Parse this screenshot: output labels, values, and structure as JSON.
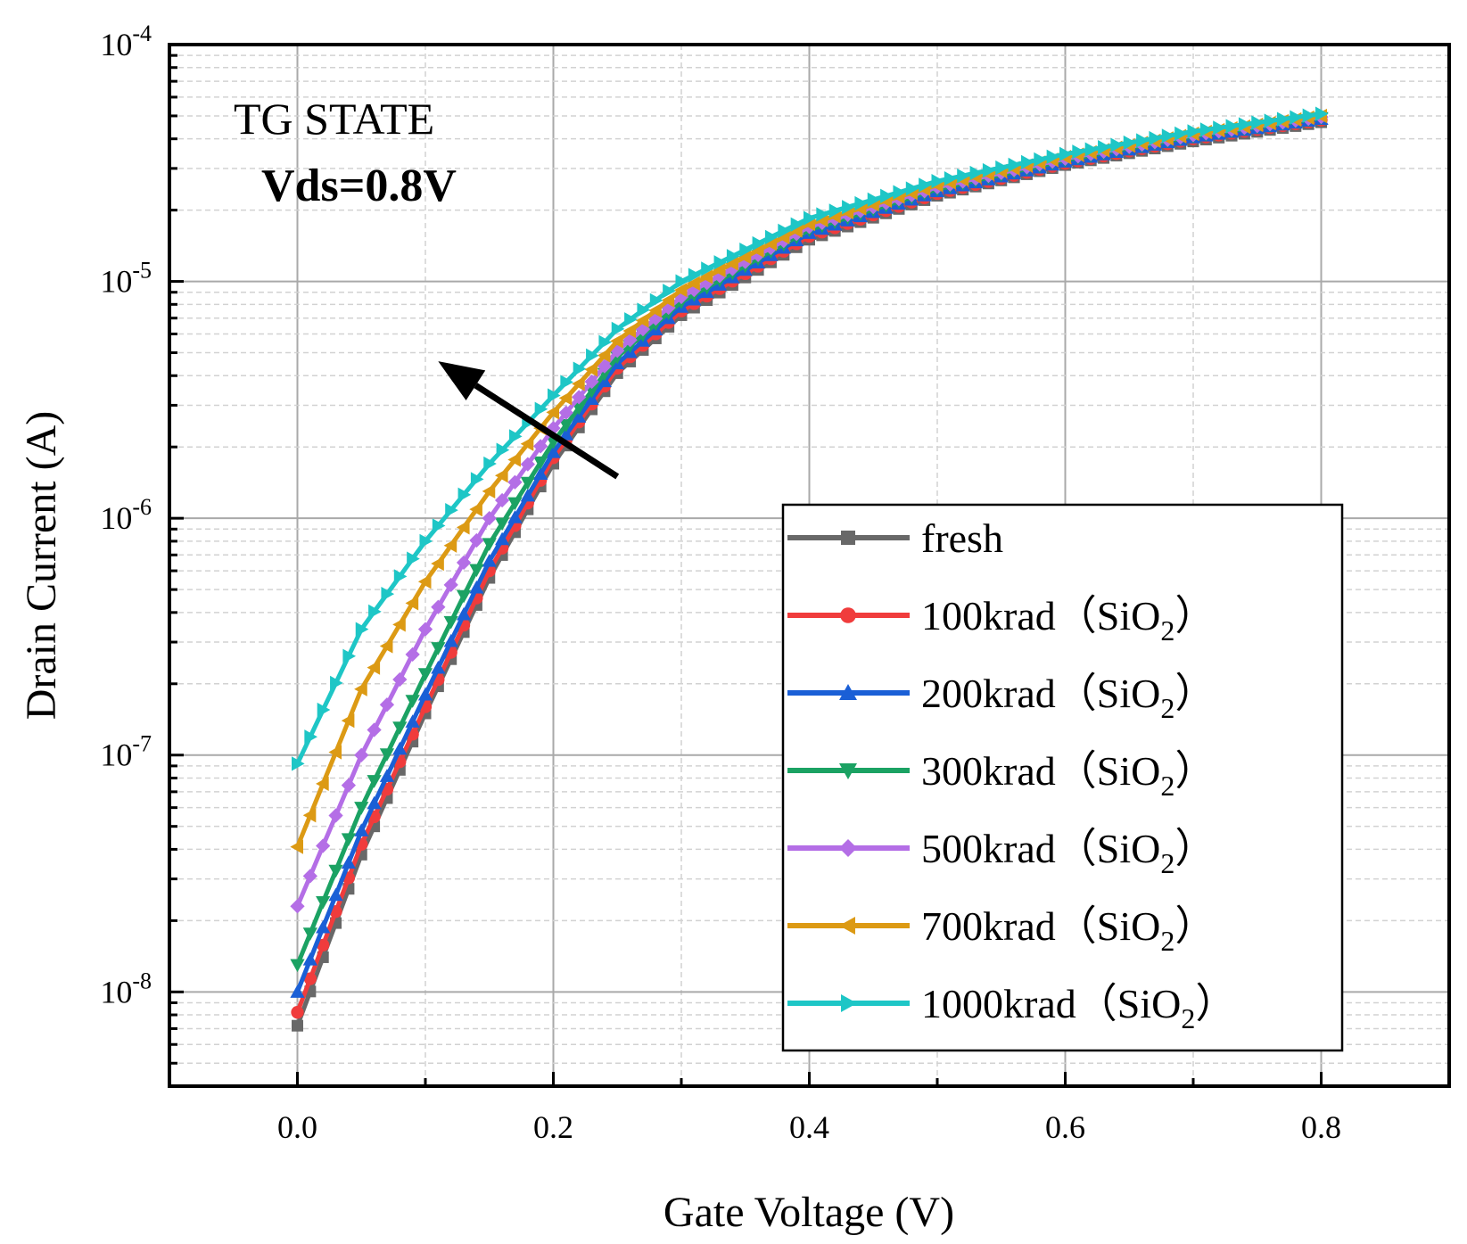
{
  "chart_data": {
    "type": "line",
    "xlabel": "Gate Voltage (V)",
    "ylabel": "Drain Current (A)",
    "xlim": [
      -0.1,
      0.9
    ],
    "ylim": [
      4e-09,
      0.0001
    ],
    "yscale": "log",
    "grid": true,
    "x_ticks": [
      {
        "value": 0.0,
        "label": "0.0"
      },
      {
        "value": 0.2,
        "label": "0.2"
      },
      {
        "value": 0.4,
        "label": "0.4"
      },
      {
        "value": 0.6,
        "label": "0.6"
      },
      {
        "value": 0.8,
        "label": "0.8"
      }
    ],
    "y_ticks": [
      {
        "value": 1e-08,
        "base": "10",
        "exp": "-8"
      },
      {
        "value": 1e-07,
        "base": "10",
        "exp": "-7"
      },
      {
        "value": 1e-06,
        "base": "10",
        "exp": "-6"
      },
      {
        "value": 1e-05,
        "base": "10",
        "exp": "-5"
      },
      {
        "value": 0.0001,
        "base": "10",
        "exp": "-4"
      }
    ],
    "annotations": {
      "state": "TG STATE",
      "bias": "Vds=0.8V"
    },
    "arrow": {
      "from": [
        0.25,
        1.5e-06
      ],
      "to": [
        0.11,
        4.6e-06
      ],
      "meaning": "increasing dose"
    },
    "legend_position": "lower-right",
    "x": [
      0.0,
      0.05,
      0.1,
      0.15,
      0.2,
      0.25,
      0.3,
      0.4,
      0.5,
      0.6,
      0.7,
      0.8
    ],
    "series": [
      {
        "name": "fresh",
        "paren_open": "（",
        "formula": "",
        "sub": "",
        "paren_close": "",
        "color": "#686868",
        "marker": "square",
        "values": [
          7.2e-09,
          3.8e-08,
          1.5e-07,
          5.6e-07,
          1.7e-06,
          4.1e-06,
          7.2e-06,
          1.5e-05,
          2.3e-05,
          3.1e-05,
          3.9e-05,
          4.7e-05
        ]
      },
      {
        "name": "100krad",
        "paren_open": "（",
        "formula": "SiO",
        "sub": "2",
        "paren_close": "）",
        "color": "#f03c3c",
        "marker": "circle",
        "values": [
          8.2e-09,
          4.2e-08,
          1.6e-07,
          6e-07,
          1.8e-06,
          4.3e-06,
          7.5e-06,
          1.55e-05,
          2.35e-05,
          3.15e-05,
          4e-05,
          4.8e-05
        ]
      },
      {
        "name": "200krad",
        "paren_open": "（",
        "formula": "SiO",
        "sub": "2",
        "paren_close": "）",
        "color": "#1a5fd6",
        "marker": "triangle-up",
        "values": [
          1e-08,
          4.8e-08,
          1.8e-07,
          6.6e-07,
          1.9e-06,
          4.5e-06,
          7.8e-06,
          1.6e-05,
          2.4e-05,
          3.2e-05,
          4.05e-05,
          4.85e-05
        ]
      },
      {
        "name": "300krad",
        "paren_open": "（",
        "formula": "SiO",
        "sub": "2",
        "paren_close": "）",
        "color": "#1ba263",
        "marker": "triangle-down",
        "values": [
          1.3e-08,
          6e-08,
          2.2e-07,
          7.8e-07,
          2.1e-06,
          4.8e-06,
          8.2e-06,
          1.65e-05,
          2.45e-05,
          3.25e-05,
          4.1e-05,
          4.9e-05
        ]
      },
      {
        "name": "500krad",
        "paren_open": "（",
        "formula": "SiO",
        "sub": "2",
        "paren_close": "）",
        "color": "#b46ee6",
        "marker": "diamond",
        "values": [
          2.3e-08,
          1e-07,
          3.4e-07,
          1e-06,
          2.4e-06,
          5.1e-06,
          8.6e-06,
          1.7e-05,
          2.5e-05,
          3.3e-05,
          4.15e-05,
          4.95e-05
        ]
      },
      {
        "name": "700krad",
        "paren_open": "（",
        "formula": "SiO",
        "sub": "2",
        "paren_close": "）",
        "color": "#dc9a14",
        "marker": "triangle-left",
        "values": [
          4.1e-08,
          1.9e-07,
          5.4e-07,
          1.3e-06,
          2.8e-06,
          5.6e-06,
          9.2e-06,
          1.75e-05,
          2.55e-05,
          3.35e-05,
          4.2e-05,
          5e-05
        ]
      },
      {
        "name": "1000krad",
        "paren_open": "（",
        "formula": "SiO",
        "sub": "2",
        "paren_close": "）",
        "color": "#1ec6c6",
        "marker": "triangle-right",
        "values": [
          9.2e-08,
          3.4e-07,
          8e-07,
          1.7e-06,
          3.3e-06,
          6.3e-06,
          1e-05,
          1.85e-05,
          2.65e-05,
          3.45e-05,
          4.3e-05,
          5.1e-05
        ]
      }
    ]
  }
}
